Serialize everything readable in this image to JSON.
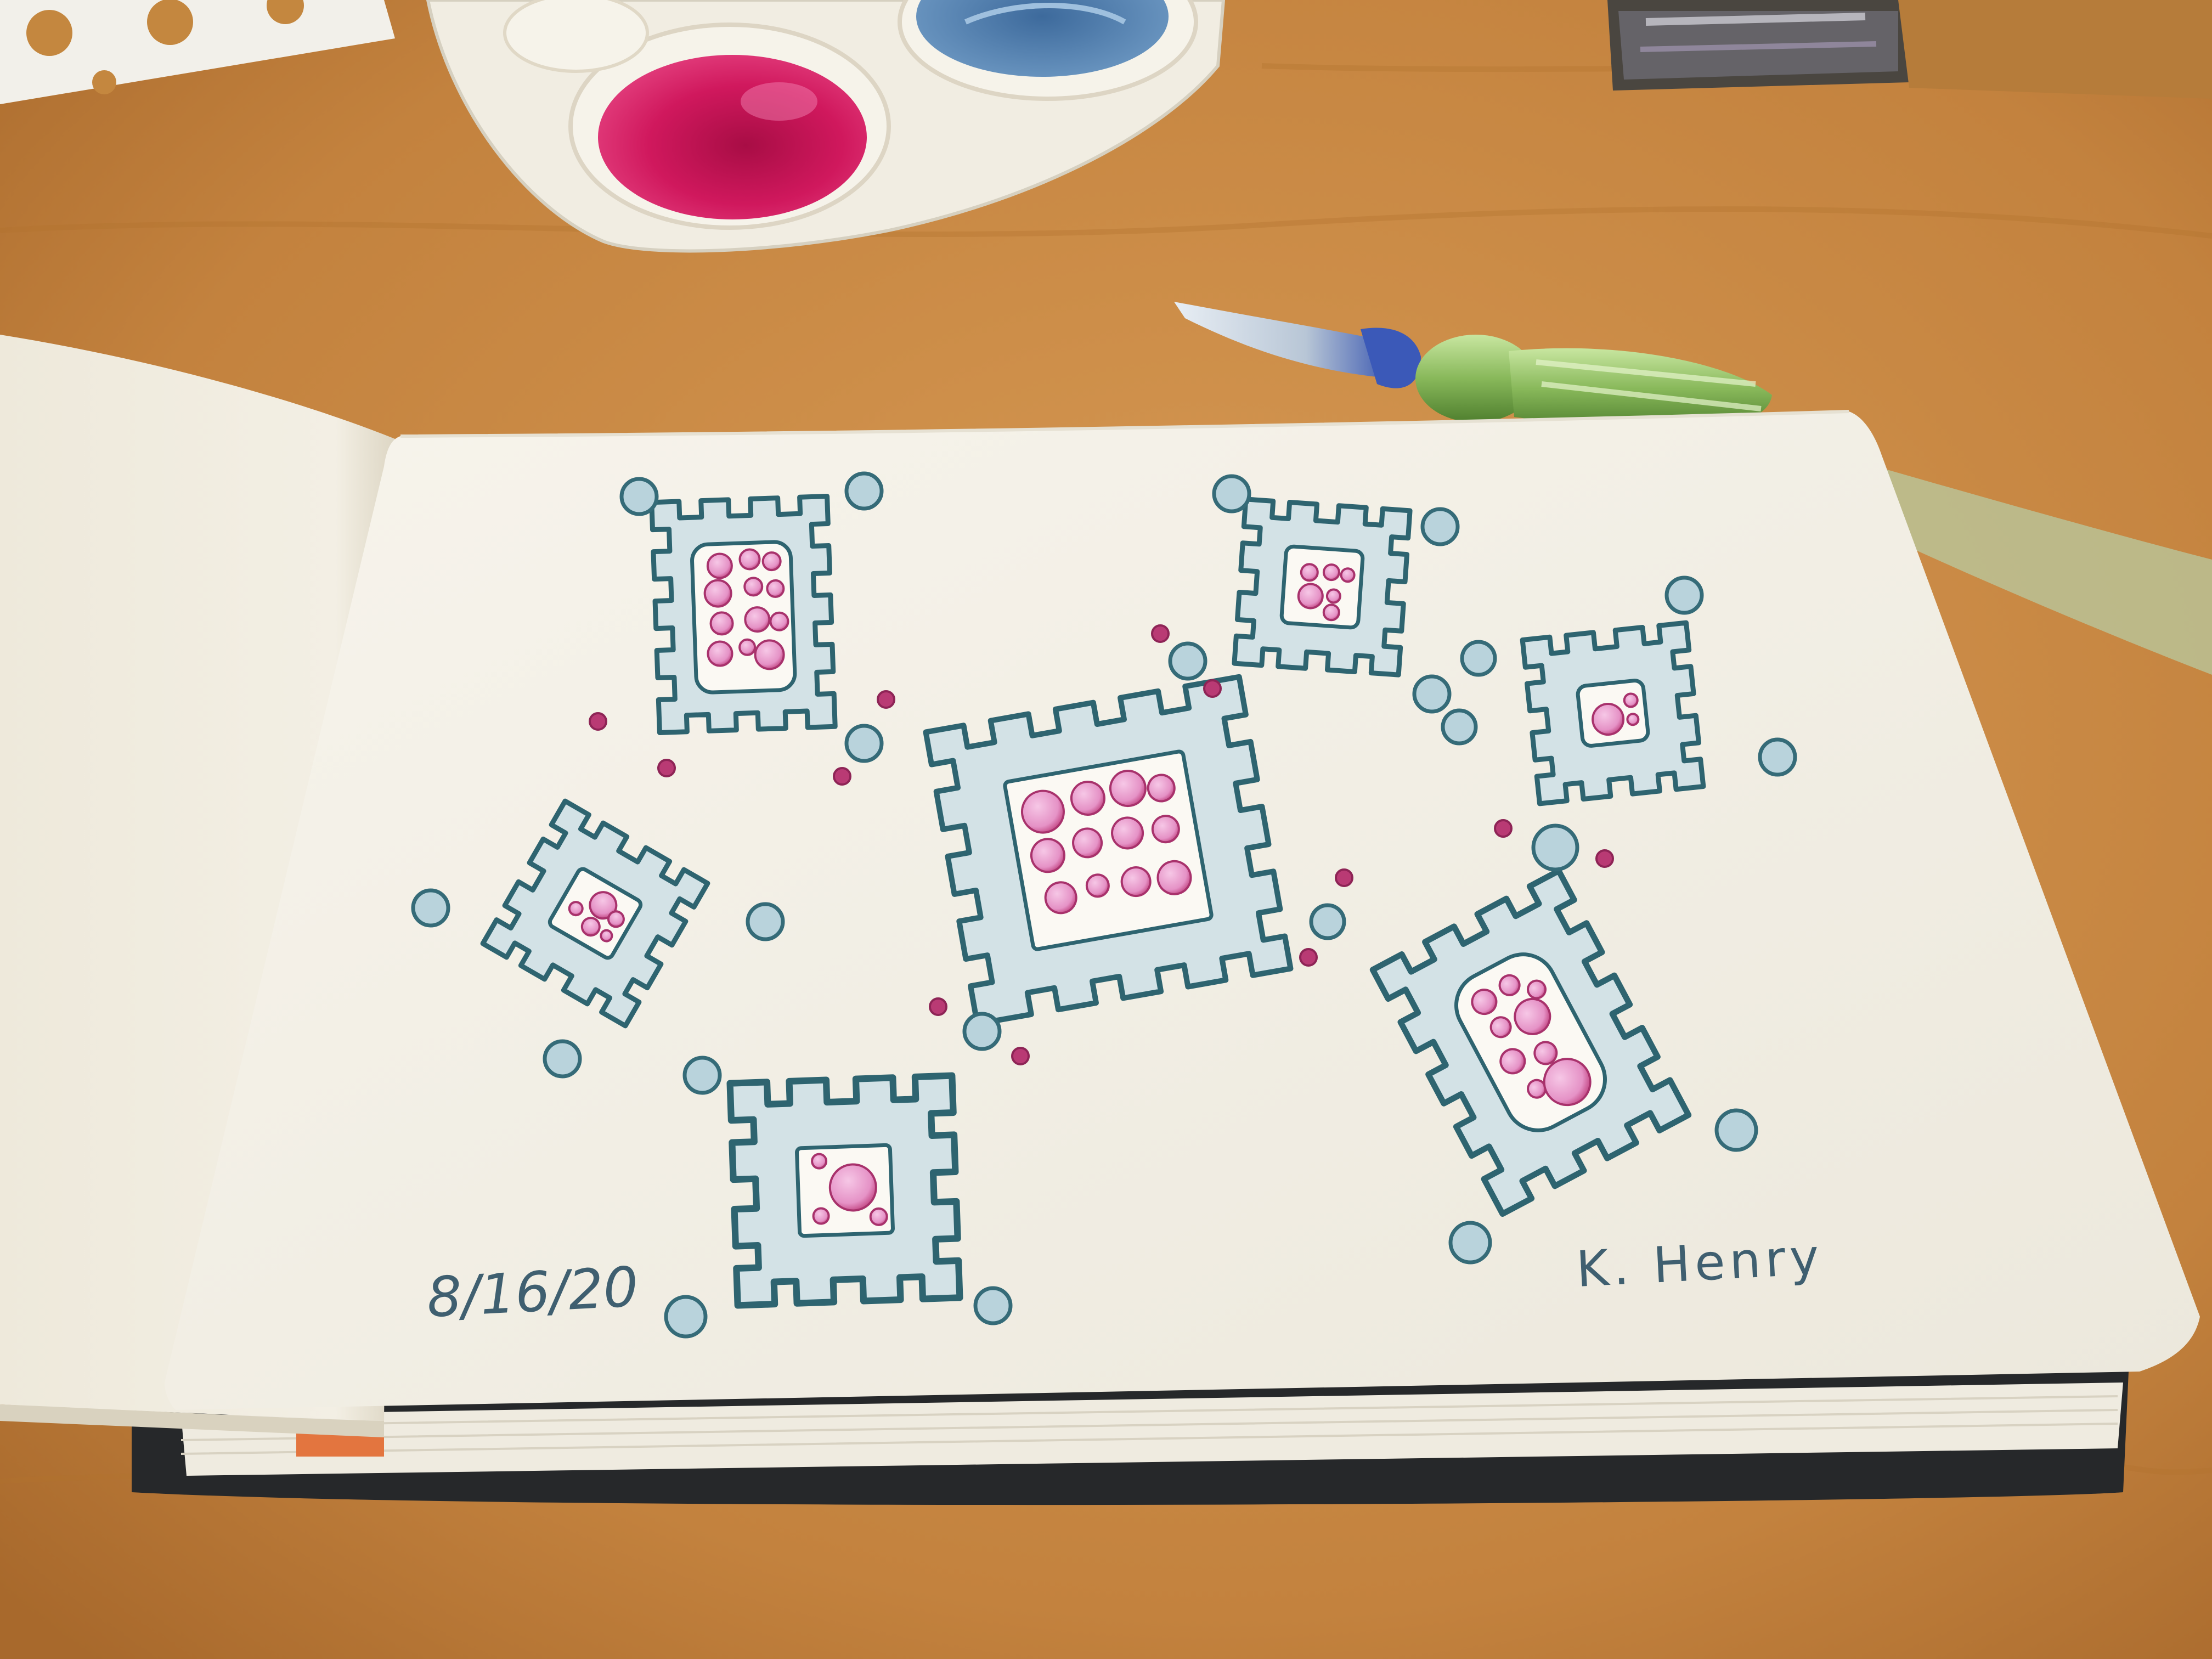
{
  "sketch": {
    "date": "8/16/20",
    "signature": "K. Henry"
  },
  "colors": {
    "table": "#c98a45",
    "paper": "#f4f1e8",
    "stamp_fill": "#d3e2e6",
    "stamp_outline": "#2e6470",
    "dot_blue": "#b9d3dc",
    "pink_fill": "#e89ccc",
    "pink_dark": "#b0306a",
    "magenta_paint": "#c8155a",
    "blue_paint": "#4a78a8",
    "glass_pen_green": "#8fbf5a",
    "ink_text": "#3f5f70"
  }
}
